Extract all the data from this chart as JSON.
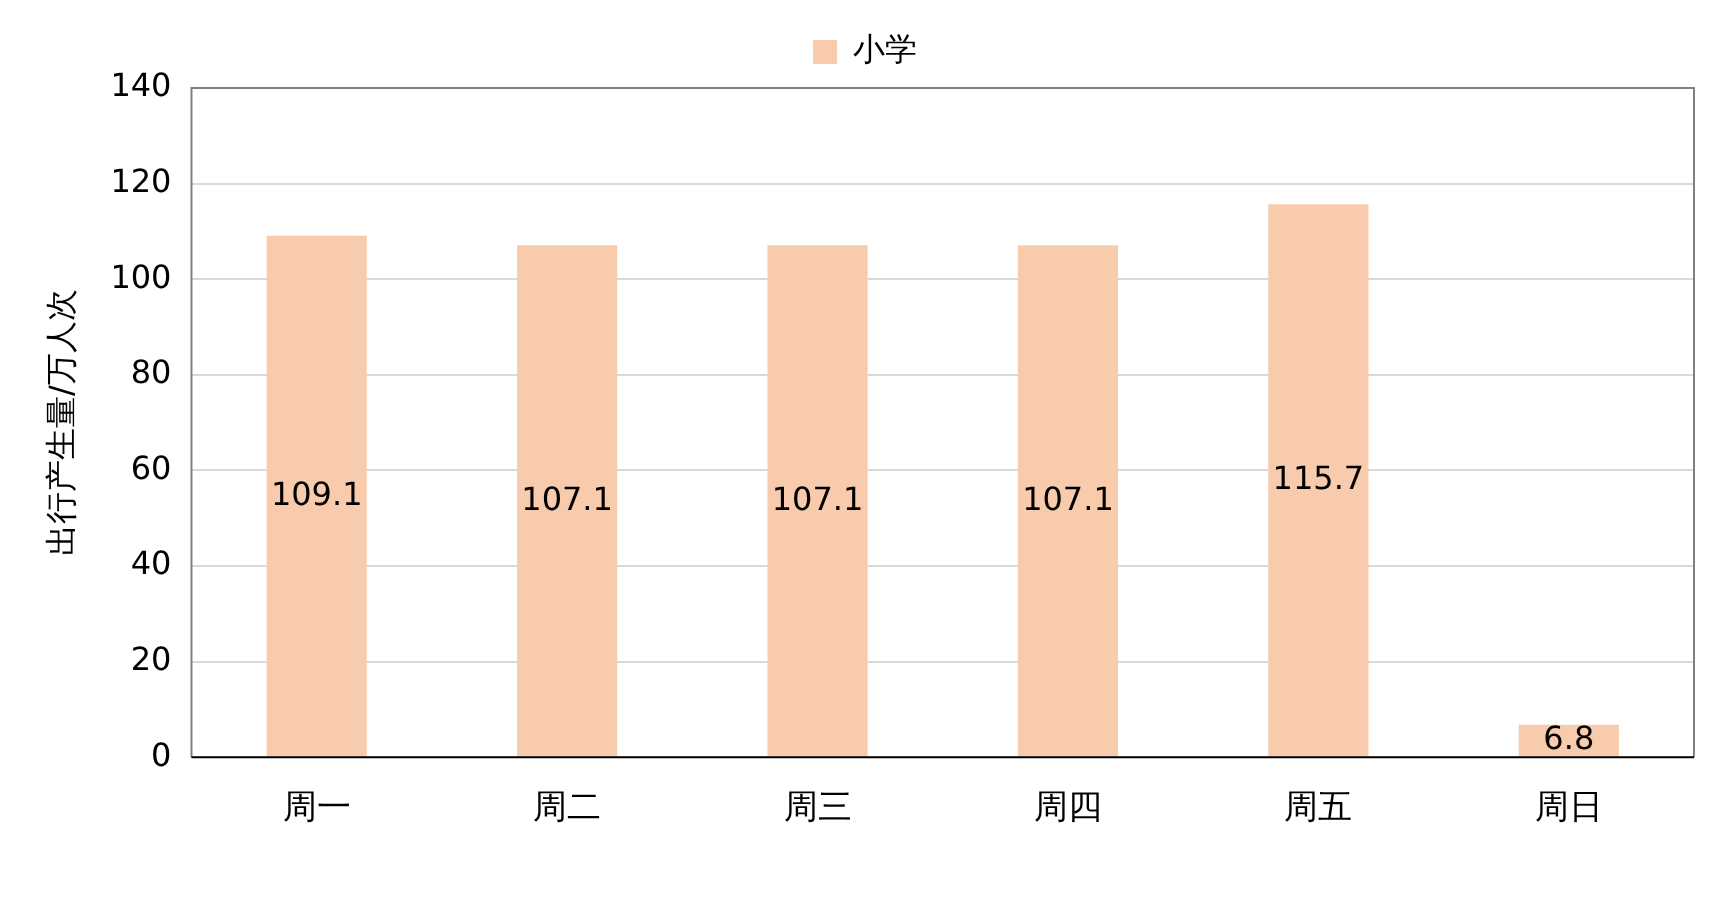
{
  "chart_data": {
    "type": "bar",
    "ylabel": "出行产生量/万人次",
    "categories": [
      "周一",
      "周二",
      "周三",
      "周四",
      "周五",
      "周日"
    ],
    "series": [
      {
        "name": "小学",
        "color": "#f8cbad",
        "values": [
          109.1,
          107.1,
          107.1,
          107.1,
          115.7,
          6.8
        ]
      }
    ],
    "ylim": [
      0,
      140
    ],
    "yticks": [
      0,
      20,
      40,
      60,
      80,
      100,
      120,
      140
    ],
    "grid": "y",
    "legend": "top",
    "data_labels": true
  }
}
